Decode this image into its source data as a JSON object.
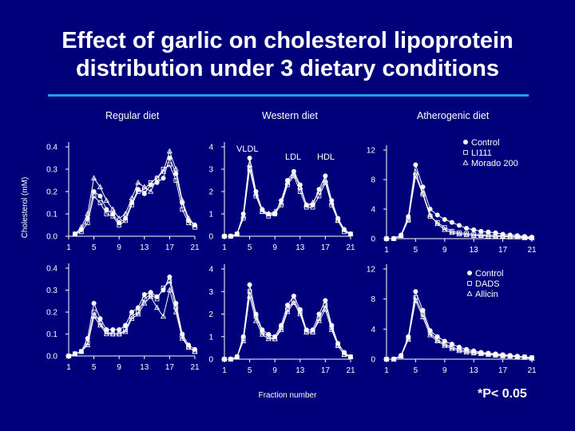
{
  "slide": {
    "title_line1": "Effect of garlic on cholesterol lipoprotein",
    "title_line2": "distribution under 3 dietary conditions",
    "footnote": "*P< 0.05"
  },
  "columns": [
    "Regular diet",
    "Western diet",
    "Atherogenic diet"
  ],
  "annotations": {
    "ylabel": "Cholesterol (mM)",
    "xlabel": "Fraction number",
    "vldl": "VLDL",
    "ldl": "LDL",
    "hdl": "HDL"
  },
  "legends": {
    "top": [
      "Control",
      "LI111",
      "Morado 200"
    ],
    "bottom": [
      "Control",
      "DADS",
      "Allicin"
    ]
  },
  "colors": {
    "background": "#00007a",
    "rule": "#1ea0e6",
    "ink": "#ffffff"
  },
  "chart_data": [
    {
      "type": "line",
      "panel": "regular-top",
      "x": [
        1,
        2,
        3,
        4,
        5,
        6,
        7,
        8,
        9,
        10,
        11,
        12,
        13,
        14,
        15,
        16,
        17,
        18,
        19,
        20,
        21
      ],
      "xticks": [
        1,
        5,
        9,
        13,
        17,
        21
      ],
      "ylim": [
        0,
        0.4
      ],
      "yticks": [
        "0.0",
        "0.1",
        "0.2",
        "0.3",
        "0.4"
      ],
      "series": [
        {
          "name": "Control",
          "values": [
            null,
            0.01,
            0.03,
            0.08,
            0.2,
            0.18,
            0.12,
            0.1,
            0.06,
            0.08,
            0.15,
            0.21,
            0.19,
            0.23,
            0.24,
            0.26,
            0.35,
            0.28,
            0.15,
            0.07,
            0.05
          ]
        },
        {
          "name": "LI111",
          "values": [
            null,
            0.01,
            0.02,
            0.06,
            0.18,
            0.15,
            0.1,
            0.09,
            0.05,
            0.07,
            0.14,
            0.2,
            0.21,
            0.24,
            0.26,
            0.3,
            0.32,
            0.25,
            0.12,
            0.06,
            0.04
          ]
        },
        {
          "name": "Morado 200",
          "values": [
            null,
            0.01,
            0.04,
            0.1,
            0.26,
            0.22,
            0.16,
            0.12,
            0.08,
            0.1,
            0.17,
            0.24,
            0.22,
            0.2,
            0.26,
            0.29,
            0.38,
            0.3,
            0.16,
            0.08,
            0.05
          ]
        }
      ]
    },
    {
      "type": "line",
      "panel": "western-top",
      "x": [
        1,
        2,
        3,
        4,
        5,
        6,
        7,
        8,
        9,
        10,
        11,
        12,
        13,
        14,
        15,
        16,
        17,
        18,
        19,
        20,
        21
      ],
      "xticks": [
        1,
        5,
        9,
        13,
        17,
        21
      ],
      "ylim": [
        0,
        4
      ],
      "yticks": [
        "0",
        "1",
        "2",
        "3",
        "4"
      ],
      "series": [
        {
          "name": "Control",
          "values": [
            0,
            0,
            0.1,
            1.0,
            3.5,
            2.0,
            1.2,
            1.0,
            1.0,
            1.6,
            2.5,
            2.9,
            2.3,
            1.4,
            1.4,
            2.1,
            2.7,
            1.6,
            0.8,
            0.3,
            0.1
          ]
        },
        {
          "name": "LI111",
          "values": [
            0,
            0,
            0.1,
            0.8,
            3.0,
            1.8,
            1.1,
            0.9,
            1.0,
            1.4,
            2.3,
            2.7,
            2.0,
            1.3,
            1.3,
            1.8,
            2.4,
            1.4,
            0.7,
            0.2,
            0.1
          ]
        },
        {
          "name": "Morado 200",
          "values": [
            0,
            0,
            0.1,
            0.9,
            3.2,
            1.9,
            1.1,
            1.0,
            1.1,
            1.5,
            2.4,
            2.8,
            2.2,
            1.4,
            1.5,
            2.0,
            2.5,
            1.5,
            0.7,
            0.3,
            0.1
          ]
        }
      ]
    },
    {
      "type": "line",
      "panel": "atherogenic-top",
      "x": [
        1,
        2,
        3,
        4,
        5,
        6,
        7,
        8,
        9,
        10,
        11,
        12,
        13,
        14,
        15,
        16,
        17,
        18,
        19,
        20,
        21
      ],
      "xticks": [
        1,
        5,
        9,
        13,
        17,
        21
      ],
      "ylim": [
        0,
        12
      ],
      "yticks": [
        "0",
        "4",
        "8",
        "12"
      ],
      "series": [
        {
          "name": "Control",
          "values": [
            0,
            0,
            0.5,
            3.0,
            10.0,
            7.0,
            4.0,
            3.2,
            2.6,
            2.2,
            1.8,
            1.4,
            1.2,
            1.0,
            0.9,
            0.8,
            0.6,
            0.5,
            0.4,
            0.3,
            0.2
          ]
        },
        {
          "name": "LI111",
          "values": [
            0,
            0,
            0.4,
            2.5,
            8.5,
            6.0,
            3.0,
            2.2,
            1.5,
            1.0,
            0.8,
            0.7,
            0.6,
            0.5,
            0.5,
            0.4,
            0.4,
            0.3,
            0.3,
            0.2,
            0.1
          ]
        },
        {
          "name": "Morado 200",
          "values": [
            0,
            0,
            0.4,
            2.6,
            9.0,
            6.2,
            3.2,
            2.0,
            1.2,
            0.8,
            0.6,
            0.5,
            0.4,
            0.4,
            0.3,
            0.3,
            0.3,
            0.2,
            0.2,
            0.1,
            0.1
          ]
        }
      ]
    },
    {
      "type": "line",
      "panel": "regular-bottom",
      "x": [
        1,
        2,
        3,
        4,
        5,
        6,
        7,
        8,
        9,
        10,
        11,
        12,
        13,
        14,
        15,
        16,
        17,
        18,
        19,
        20,
        21
      ],
      "xticks": [
        1,
        5,
        9,
        13,
        17,
        21
      ],
      "ylim": [
        0,
        0.4
      ],
      "yticks": [
        "0.0",
        "0.1",
        "0.2",
        "0.3",
        "0.4"
      ],
      "series": [
        {
          "name": "Control",
          "values": [
            0,
            0.01,
            0.02,
            0.08,
            0.24,
            0.17,
            0.12,
            0.12,
            0.12,
            0.14,
            0.2,
            0.22,
            0.28,
            0.29,
            0.27,
            0.3,
            0.36,
            0.24,
            0.1,
            0.05,
            0.03
          ]
        },
        {
          "name": "DADS",
          "values": [
            0,
            0.01,
            0.02,
            0.06,
            0.2,
            0.15,
            0.11,
            0.1,
            0.1,
            0.12,
            0.18,
            0.2,
            0.26,
            0.28,
            0.26,
            0.31,
            0.34,
            0.22,
            0.09,
            0.04,
            0.02
          ]
        },
        {
          "name": "Allicin",
          "values": [
            0,
            0.01,
            0.02,
            0.05,
            0.18,
            0.14,
            0.1,
            0.1,
            0.1,
            0.11,
            0.17,
            0.19,
            0.24,
            0.27,
            0.22,
            0.18,
            0.3,
            0.2,
            0.08,
            0.04,
            0.02
          ]
        }
      ]
    },
    {
      "type": "line",
      "panel": "western-bottom",
      "x": [
        1,
        2,
        3,
        4,
        5,
        6,
        7,
        8,
        9,
        10,
        11,
        12,
        13,
        14,
        15,
        16,
        17,
        18,
        19,
        20,
        21
      ],
      "xticks": [
        1,
        5,
        9,
        13,
        17,
        21
      ],
      "ylim": [
        0,
        4
      ],
      "yticks": [
        "0",
        "1",
        "2",
        "3",
        "4"
      ],
      "series": [
        {
          "name": "Control",
          "values": [
            0,
            0,
            0.1,
            1.0,
            3.3,
            2.0,
            1.3,
            1.1,
            1.0,
            1.5,
            2.4,
            2.8,
            2.2,
            1.3,
            1.3,
            2.0,
            2.6,
            1.5,
            0.7,
            0.3,
            0.1
          ]
        },
        {
          "name": "DADS",
          "values": [
            0,
            0,
            0.1,
            0.9,
            3.0,
            1.9,
            1.2,
            1.0,
            0.9,
            1.4,
            2.2,
            2.6,
            2.1,
            1.2,
            1.2,
            1.8,
            2.4,
            1.4,
            0.6,
            0.2,
            0.1
          ]
        },
        {
          "name": "Allicin",
          "values": [
            0,
            0,
            0.1,
            0.8,
            2.8,
            1.7,
            1.1,
            0.9,
            0.9,
            1.3,
            2.1,
            2.5,
            2.0,
            1.2,
            1.2,
            1.7,
            2.2,
            1.3,
            0.6,
            0.2,
            0.1
          ]
        }
      ]
    },
    {
      "type": "line",
      "panel": "atherogenic-bottom",
      "x": [
        1,
        2,
        3,
        4,
        5,
        6,
        7,
        8,
        9,
        10,
        11,
        12,
        13,
        14,
        15,
        16,
        17,
        18,
        19,
        20,
        21
      ],
      "xticks": [
        1,
        5,
        9,
        13,
        17,
        21
      ],
      "ylim": [
        0,
        12
      ],
      "yticks": [
        "0",
        "4",
        "8",
        "12"
      ],
      "series": [
        {
          "name": "Control",
          "values": [
            0,
            0,
            0.5,
            3.0,
            9.0,
            6.5,
            3.8,
            3.0,
            2.4,
            2.0,
            1.6,
            1.3,
            1.1,
            0.9,
            0.8,
            0.7,
            0.6,
            0.5,
            0.4,
            0.3,
            0.2
          ]
        },
        {
          "name": "DADS",
          "values": [
            0,
            0,
            0.4,
            2.8,
            8.2,
            6.0,
            3.5,
            2.6,
            2.0,
            1.6,
            1.3,
            1.1,
            0.9,
            0.8,
            0.7,
            0.6,
            0.5,
            0.4,
            0.3,
            0.3,
            0.2
          ]
        },
        {
          "name": "Allicin",
          "values": [
            0,
            0,
            0.4,
            2.6,
            7.8,
            5.6,
            3.2,
            2.4,
            1.8,
            1.4,
            1.1,
            0.9,
            0.8,
            0.7,
            0.6,
            0.5,
            0.4,
            0.4,
            0.3,
            0.2,
            0.1
          ]
        }
      ]
    }
  ]
}
